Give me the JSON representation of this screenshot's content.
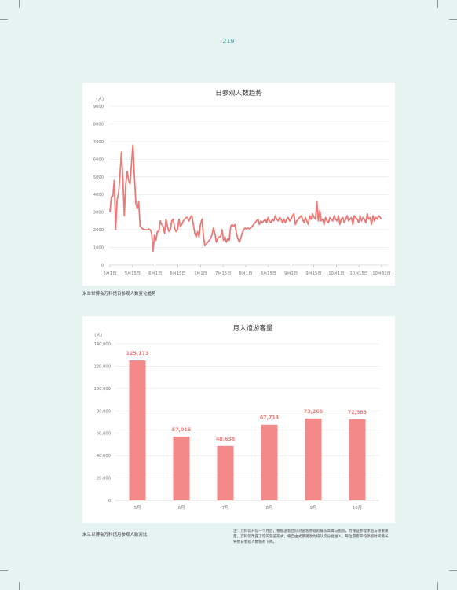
{
  "page_number": "219",
  "caption1": "米兰世博会万科馆日参观人数变化趋势",
  "caption2": "米兰世博会万科馆月参观人数对比",
  "note": "注：万科馆开馆一个月后，根据游客团队对游客参观的排队高峰与抱怨，为保证参观体验与效果质量，万科馆改变了馆内游览形式，将自由式参观改为排队次分批进入，每位游客平均停留时间增长，导致日参观人数稍有下降。",
  "colors": {
    "line": "#e97a78",
    "bar": "#f28a89",
    "label": "#ee7b79",
    "axis": "#9a9a9a"
  },
  "chart_data": [
    {
      "type": "line",
      "title": "日参观人数趋势",
      "ylabel": "（人）",
      "ylim": [
        0,
        9000
      ],
      "yticks": [
        "0",
        "1000",
        "2000",
        "3000",
        "4000",
        "5000",
        "6000",
        "7000",
        "8000",
        "9000"
      ],
      "xticks": [
        "5月1日",
        "5月15日",
        "6月1日",
        "6月15日",
        "7月1日",
        "7月15日",
        "8月1日",
        "8月15日",
        "9月1日",
        "9月15日",
        "10月1日",
        "10月15日",
        "10月31日"
      ],
      "x_start": "2015-05-01",
      "x_end": "2015-10-31",
      "grid": true,
      "series": [
        {
          "values": [
            3000,
            3850,
            3900,
            4800,
            2000,
            3700,
            4100,
            5100,
            6400,
            4900,
            2800,
            4600,
            5300,
            4800,
            4600,
            5800,
            6800,
            5100,
            3500,
            3200,
            3600,
            2200,
            2100,
            2050,
            2000,
            2000,
            2000,
            2050,
            2000,
            1800,
            800,
            1700,
            1400,
            1900,
            1900,
            2500,
            2300,
            2200,
            1800,
            2600,
            2200,
            1900,
            2000,
            2500,
            2600,
            2100,
            1900,
            2000,
            2600,
            2200,
            2300,
            2500,
            2600,
            2700,
            2700,
            2500,
            2700,
            2800,
            2300,
            1800,
            1600,
            1900,
            1600,
            2300,
            2600,
            1700,
            1100,
            1200,
            1300,
            1400,
            1500,
            1700,
            2100,
            1800,
            1300,
            1500,
            1600,
            1600,
            2000,
            1400,
            1600,
            1300,
            1500,
            1400,
            2200,
            2300,
            2200,
            2300,
            1800,
            1500,
            1300,
            1500,
            1800,
            2000,
            2100,
            2050,
            2100,
            2050,
            2100,
            2200,
            2300,
            2400,
            2500,
            2600,
            2300,
            2500,
            2400,
            2500,
            2600,
            2400,
            2700,
            2500,
            2400,
            2600,
            2500,
            2800,
            2600,
            2500,
            2700,
            2600,
            2400,
            2600,
            2400,
            2600,
            2700,
            2500,
            2600,
            2800,
            2900,
            2300,
            2500,
            2600,
            2700,
            2800,
            2600,
            2400,
            2700,
            2500,
            2300,
            2800,
            2600,
            2900,
            2700,
            2600,
            3600,
            2500,
            3100,
            2500,
            2600,
            2300,
            2700,
            2500,
            2400,
            2700,
            2600,
            2500,
            2800,
            2600,
            2500,
            2800,
            2300,
            2600,
            2700,
            2400,
            2600,
            2800,
            2500,
            2600,
            2700,
            2300,
            2800,
            2700,
            2600,
            2400,
            2800,
            2500,
            2700,
            2600,
            2400,
            2900,
            2600,
            2700,
            2300,
            2800,
            2500,
            2700,
            2600,
            2800,
            2700,
            2600
          ]
        }
      ]
    },
    {
      "type": "bar",
      "title": "月入馆游客量",
      "ylabel": "（人）",
      "ylim": [
        0,
        140000
      ],
      "yticks": [
        "0",
        "20,000",
        "40,000",
        "60,000",
        "80,000",
        "100,000",
        "120,000",
        "140,000"
      ],
      "categories": [
        "5月",
        "6月",
        "7月",
        "8月",
        "9月",
        "10月"
      ],
      "values": [
        125173,
        57015,
        48638,
        67714,
        73266,
        72563
      ],
      "value_labels": [
        "125,173",
        "57,015",
        "48,638",
        "67,714",
        "73,266",
        "72,563"
      ],
      "grid": true
    }
  ]
}
